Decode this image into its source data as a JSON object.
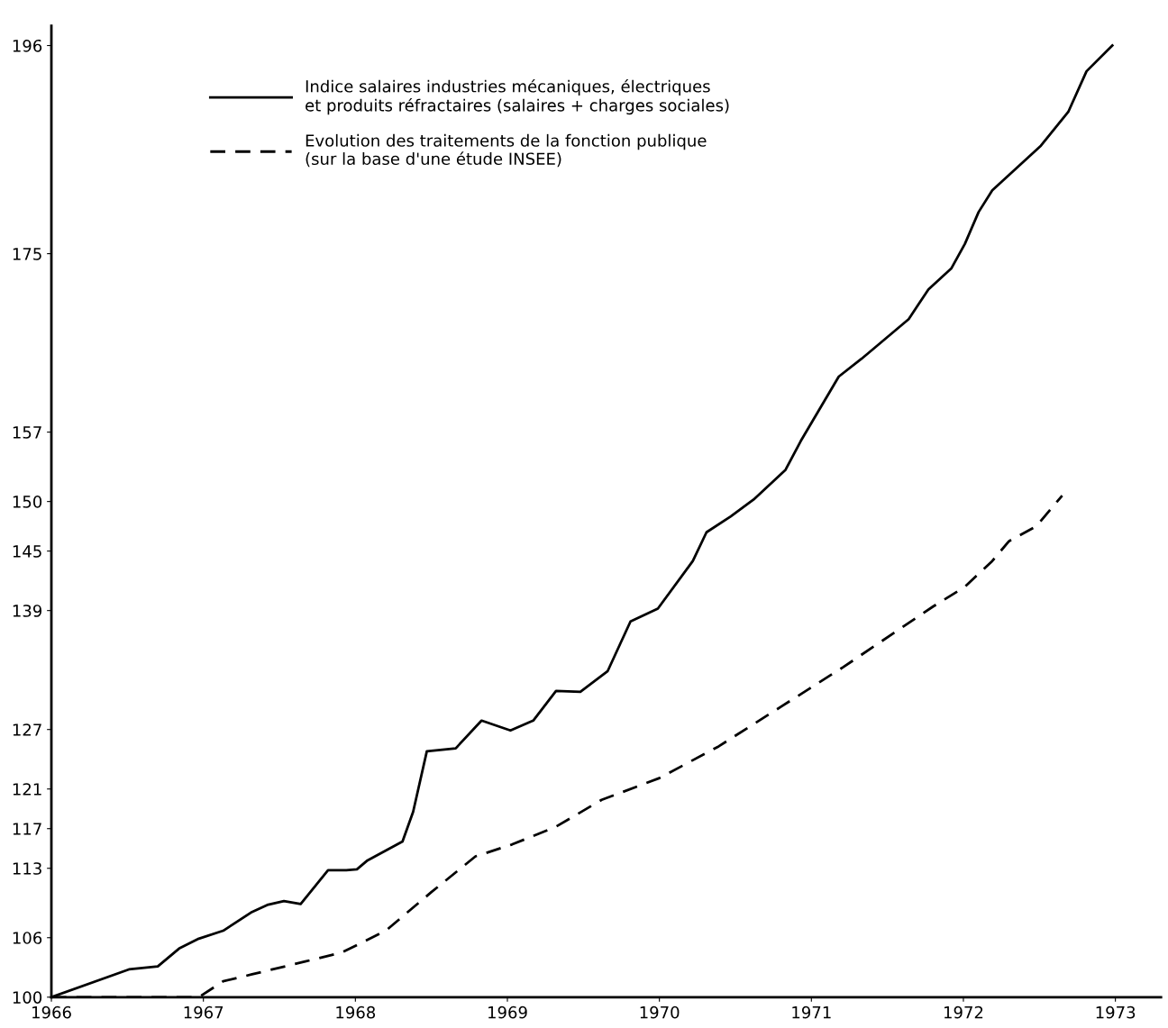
{
  "chart_data": {
    "type": "line",
    "xlim": [
      1966,
      1973.3
    ],
    "xticks": [
      1966,
      1967,
      1968,
      1969,
      1970,
      1971,
      1972,
      1973
    ],
    "ylim": [
      100,
      198
    ],
    "yticks": [
      100,
      106,
      113,
      117,
      121,
      127,
      139,
      145,
      150,
      157,
      175,
      196
    ],
    "grid": false,
    "legend": "top left",
    "marker": "none",
    "series": [
      {
        "name": "Indice salaires industries mécaniques, électriques\net produits réfractaires (salaires + charges sociales)",
        "color": "#000000",
        "line_style": "solid",
        "x": [
          1966.0,
          1966.51,
          1966.7,
          1966.84,
          1966.97,
          1967.13,
          1967.32,
          1967.42,
          1967.53,
          1967.64,
          1967.82,
          1967.94,
          1968.01,
          1968.08,
          1968.31,
          1968.38,
          1968.47,
          1968.66,
          1968.83,
          1969.02,
          1969.17,
          1969.32,
          1969.48,
          1969.66,
          1969.81,
          1969.99,
          1970.22,
          1970.31,
          1970.47,
          1970.62,
          1970.83,
          1970.93,
          1971.18,
          1971.33,
          1971.64,
          1971.77,
          1971.92,
          1972.01,
          1972.1,
          1972.19,
          1972.51,
          1972.69,
          1972.81,
          1972.98
        ],
        "values": [
          100,
          102.8,
          103.1,
          104.9,
          105.9,
          106.7,
          108.6,
          109.3,
          109.7,
          109.4,
          112.8,
          112.8,
          112.9,
          113.8,
          115.7,
          118.7,
          124.8,
          125.1,
          127.9,
          126.9,
          127.9,
          130.9,
          130.8,
          132.9,
          137.9,
          139.2,
          144.0,
          146.9,
          148.5,
          150.2,
          153.2,
          156.1,
          162.6,
          164.4,
          168.4,
          171.4,
          173.5,
          176.0,
          179.2,
          181.4,
          185.9,
          189.3,
          193.4,
          196.0
        ]
      },
      {
        "name": "Evolution des traitements de la fonction publique\n(sur la base d'une étude INSEE)",
        "color": "#000000",
        "line_style": "dashed",
        "x": [
          1966.0,
          1966.97,
          1967.13,
          1967.32,
          1967.67,
          1967.91,
          1968.2,
          1968.5,
          1968.79,
          1969.03,
          1969.32,
          1969.62,
          1970.0,
          1970.39,
          1970.8,
          1971.21,
          1971.8,
          1972.01,
          1972.19,
          1972.3,
          1972.48,
          1972.65
        ],
        "values": [
          100,
          100,
          101.6,
          102.3,
          103.6,
          104.5,
          106.7,
          110.6,
          114.2,
          115.4,
          117.2,
          119.9,
          122.1,
          125.3,
          129.3,
          133.3,
          139.4,
          141.4,
          144.0,
          146.0,
          147.5,
          150.6
        ]
      }
    ]
  }
}
